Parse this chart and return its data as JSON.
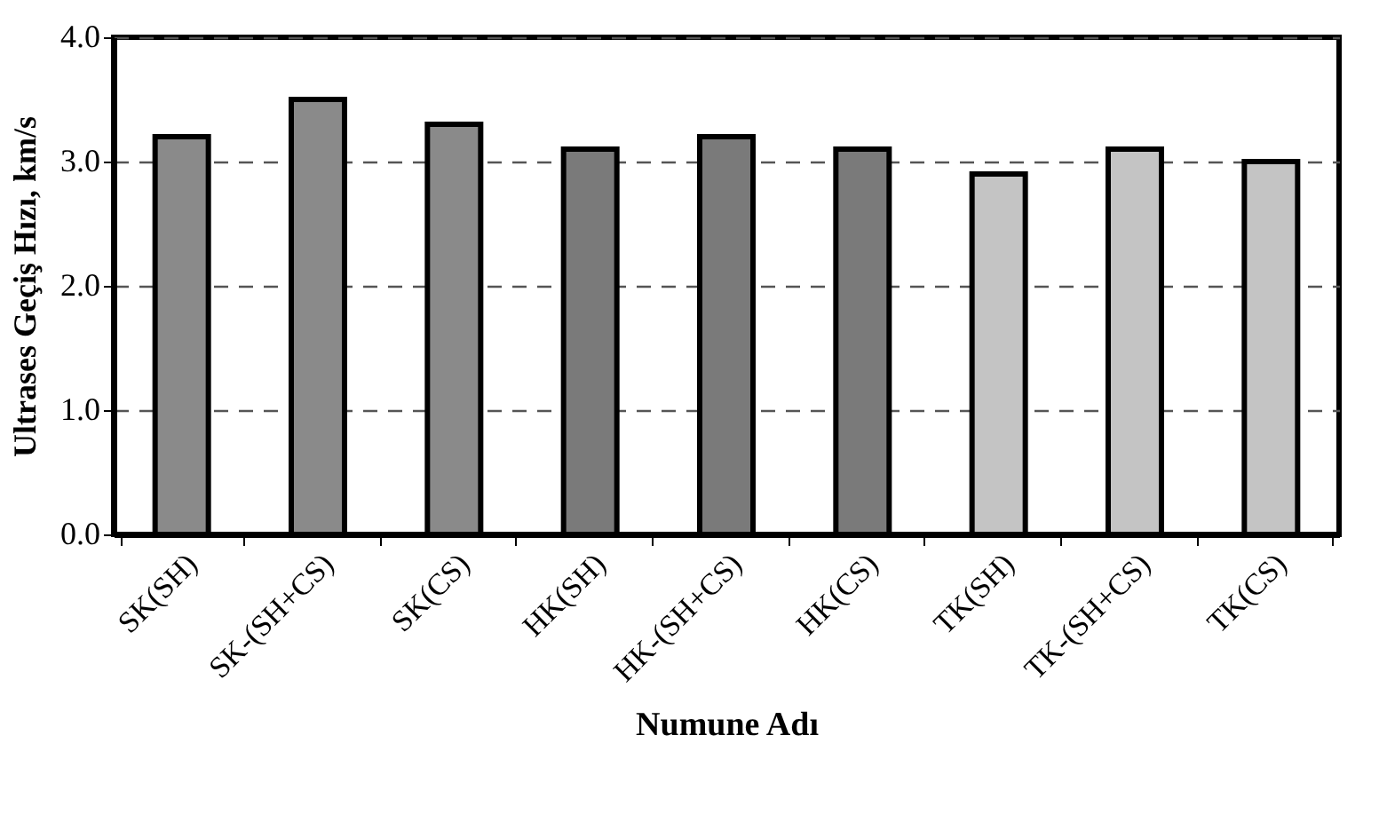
{
  "chart_data": {
    "type": "bar",
    "xlabel": "Numune Adı",
    "ylabel": "Ultrases Geçiş Hızı, km/s",
    "categories": [
      "SK(SH)",
      "SK-(SH+CS)",
      "SK(CS)",
      "HK(SH)",
      "HK-(SH+CS)",
      "HK(CS)",
      "TK(SH)",
      "TK-(SH+CS)",
      "TK(CS)"
    ],
    "values": [
      3.2,
      3.5,
      3.3,
      3.1,
      3.2,
      3.1,
      2.9,
      3.1,
      3.0
    ],
    "colors": [
      "#8a8a8a",
      "#8a8a8a",
      "#8a8a8a",
      "#7a7a7a",
      "#7a7a7a",
      "#7a7a7a",
      "#c4c4c4",
      "#c4c4c4",
      "#c4c4c4"
    ],
    "ylim": [
      0,
      4
    ],
    "yticks": [
      {
        "value": 0,
        "label": "0.0"
      },
      {
        "value": 1,
        "label": "1.0"
      },
      {
        "value": 2,
        "label": "2.0"
      },
      {
        "value": 3,
        "label": "3.0"
      },
      {
        "value": 4,
        "label": "4.0"
      }
    ],
    "grid": "y"
  }
}
